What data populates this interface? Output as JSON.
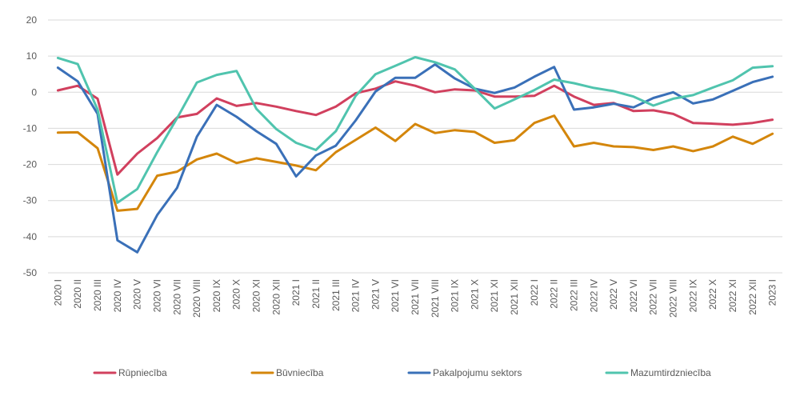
{
  "chart_data": {
    "type": "line",
    "title": "",
    "xlabel": "",
    "ylabel": "",
    "ylim": [
      -50,
      20
    ],
    "yticks": [
      20,
      10,
      0,
      -10,
      -20,
      -30,
      -40,
      -50
    ],
    "grid": true,
    "legend_position": "bottom",
    "categories": [
      "2020 I",
      "2020 II",
      "2020 III",
      "2020 IV",
      "2020 V",
      "2020 VI",
      "2020 VII",
      "2020 VIII",
      "2020 IX",
      "2020 X",
      "2020 XI",
      "2020 XII",
      "2021 I",
      "2021 II",
      "2021 III",
      "2021 IV",
      "2021 V",
      "2021 VI",
      "2021 VII",
      "2021 VIII",
      "2021 IX",
      "2021 X",
      "2021 XI",
      "2021 XII",
      "2022 I",
      "2022 II",
      "2022 III",
      "2022 IV",
      "2022 V",
      "2022 VI",
      "2022 VII",
      "2022 VIII",
      "2022 IX",
      "2022 X",
      "2022 XI",
      "2022 XII",
      "2023 I"
    ],
    "series": [
      {
        "name": "Rūpniecība",
        "color": "#d1405e",
        "values": [
          0.5,
          1.8,
          -1.8,
          -22.8,
          -17.0,
          -12.7,
          -7.0,
          -6.0,
          -1.7,
          -3.8,
          -3.0,
          -4.0,
          -5.2,
          -6.3,
          -4.0,
          -0.3,
          1.0,
          3.0,
          1.8,
          0.0,
          0.8,
          0.5,
          -1.2,
          -1.2,
          -1.0,
          1.8,
          -1.2,
          -3.5,
          -3.0,
          -5.2,
          -5.0,
          -6.0,
          -8.5,
          -8.7,
          -9.0,
          -8.5,
          -7.6
        ]
      },
      {
        "name": "Būvniecība",
        "color": "#d4860b",
        "values": [
          -11.2,
          -11.1,
          -15.5,
          -32.8,
          -32.3,
          -23.1,
          -22.0,
          -18.6,
          -17.0,
          -19.6,
          -18.3,
          -19.3,
          -20.3,
          -21.6,
          -16.6,
          -13.2,
          -9.8,
          -13.5,
          -8.8,
          -11.3,
          -10.5,
          -11.0,
          -14.0,
          -13.3,
          -8.5,
          -6.5,
          -15.0,
          -14.0,
          -15.0,
          -15.2,
          -16.0,
          -15.0,
          -16.3,
          -15.0,
          -12.3,
          -14.3,
          -11.5
        ]
      },
      {
        "name": "Pakalpojumu sektors",
        "color": "#3a70b8",
        "values": [
          6.8,
          3.0,
          -6.0,
          -41.0,
          -44.3,
          -34.0,
          -26.5,
          -12.3,
          -3.5,
          -6.8,
          -10.8,
          -14.3,
          -23.3,
          -17.5,
          -14.8,
          -7.8,
          0.2,
          4.0,
          4.0,
          7.7,
          3.8,
          1.0,
          -0.2,
          1.3,
          4.3,
          7.0,
          -4.8,
          -4.2,
          -3.2,
          -4.2,
          -1.6,
          0.0,
          -3.1,
          -2.0,
          0.4,
          2.8,
          4.3
        ]
      },
      {
        "name": "Mazumtirdzniecība",
        "color": "#50c4ae",
        "values": [
          9.5,
          7.8,
          -4.8,
          -30.6,
          -26.8,
          -16.6,
          -7.2,
          2.7,
          4.8,
          5.9,
          -4.6,
          -10.2,
          -14.0,
          -16.0,
          -10.8,
          -1.0,
          5.0,
          7.3,
          9.7,
          8.3,
          6.3,
          1.0,
          -4.5,
          -2.0,
          0.6,
          3.5,
          2.5,
          1.2,
          0.3,
          -1.2,
          -3.7,
          -1.8,
          -0.8,
          1.3,
          3.3,
          6.8,
          7.2
        ]
      }
    ]
  }
}
